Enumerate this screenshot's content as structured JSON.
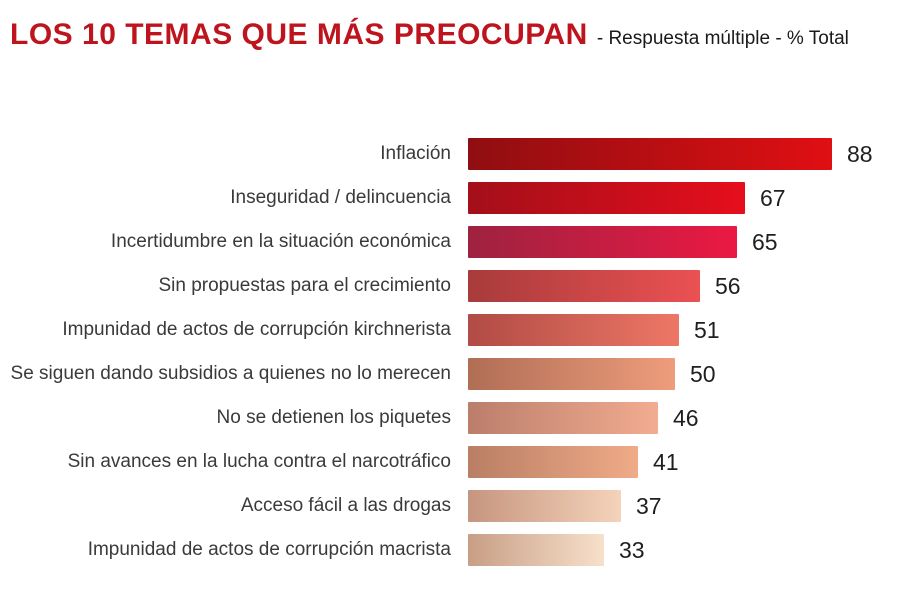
{
  "header": {
    "title": "LOS 10 TEMAS QUE MÁS PREOCUPAN",
    "subtitle": "- Respuesta múltiple - % Total"
  },
  "chart_data": {
    "type": "bar",
    "orientation": "horizontal",
    "title": "LOS 10 TEMAS QUE MÁS PREOCUPAN",
    "subtitle": "- Respuesta múltiple - % Total",
    "unit": "% Total",
    "xlim": [
      0,
      95
    ],
    "grid": false,
    "legend": false,
    "categories": [
      "Inflación",
      "Inseguridad / delincuencia",
      "Incertidumbre en la situación económica",
      "Sin propuestas para el crecimiento",
      "Impunidad de actos de corrupción kirchnerista",
      "Se siguen dando subsidios a quienes no lo merecen",
      "No se detienen los piquetes",
      "Sin avances en la lucha contra el narcotráfico",
      "Acceso fácil a las drogas",
      "Impunidad de actos de corrupción macrista"
    ],
    "values": [
      88,
      67,
      65,
      56,
      51,
      50,
      46,
      41,
      37,
      33
    ],
    "bar_colors": [
      {
        "from": "#8f0e11",
        "to": "#e00f13"
      },
      {
        "from": "#a30f1a",
        "to": "#e60e1c"
      },
      {
        "from": "#9e2240",
        "to": "#eb1943"
      },
      {
        "from": "#a83b3b",
        "to": "#eb5153"
      },
      {
        "from": "#b14b45",
        "to": "#ed7766"
      },
      {
        "from": "#b06e55",
        "to": "#ee9d7c"
      },
      {
        "from": "#bb7e6b",
        "to": "#f2ac91"
      },
      {
        "from": "#b97e64",
        "to": "#f0ab88"
      },
      {
        "from": "#c6957f",
        "to": "#f4d3ba"
      },
      {
        "from": "#c89e85",
        "to": "#f7e0cb"
      }
    ],
    "title_color": "#be141e",
    "subtitle_color": "#1a1a1a",
    "category_label_color": "#3a3a3a",
    "value_label_color": "#1f1f1f"
  }
}
